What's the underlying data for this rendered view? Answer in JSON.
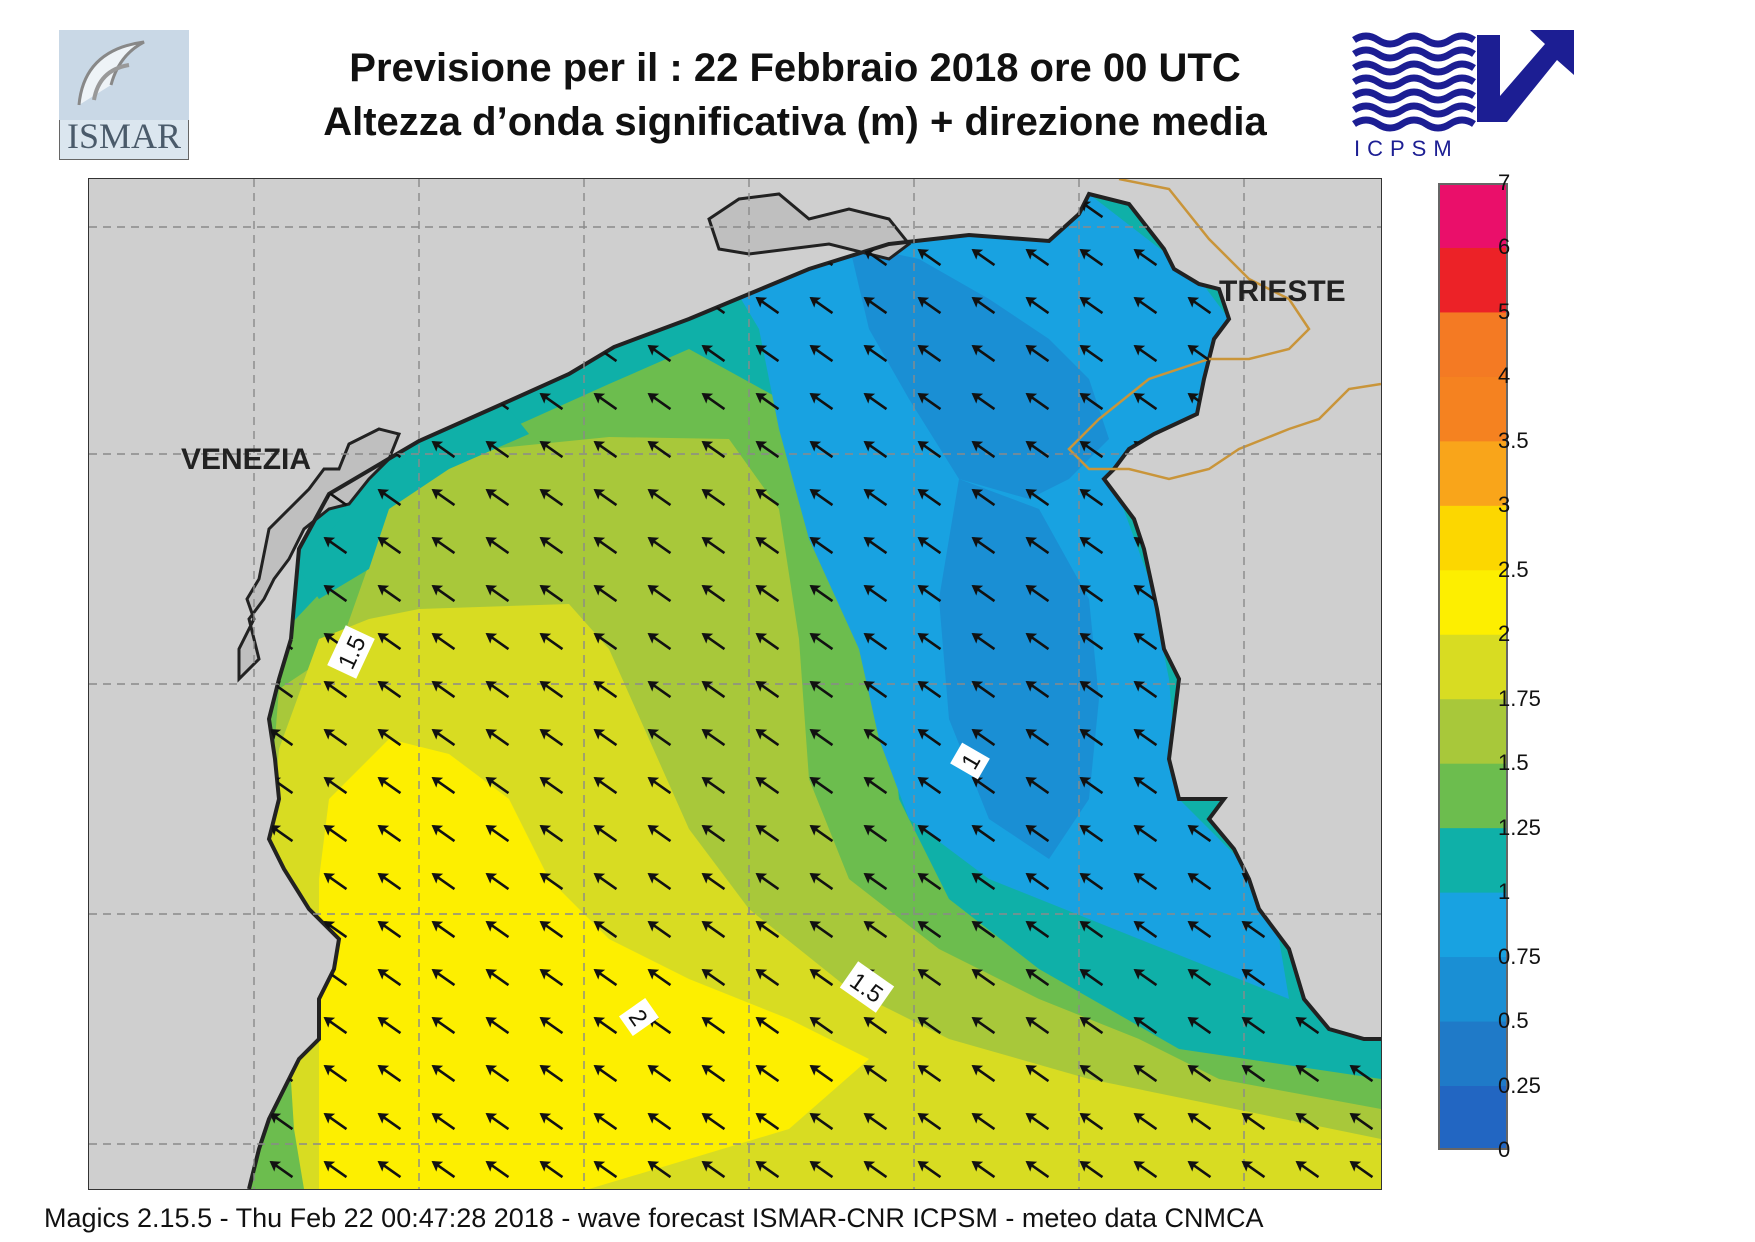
{
  "header": {
    "title_line1": "Previsione per il  :  22  Febbraio 2018   ore 00 UTC",
    "title_line2": "Altezza d’onda significativa (m) + direzione media"
  },
  "logos": {
    "left": "ISMAR",
    "right": "ICPSM"
  },
  "map": {
    "cities": [
      "VENEZIA",
      "TRIESTE"
    ],
    "contour_labels": [
      "1.5",
      "1",
      "1.5",
      "2"
    ],
    "arrow_direction": "south-west",
    "land_color": "#cfcfcf",
    "coast_color": "#222222"
  },
  "legend": {
    "ticks": [
      "7",
      "6",
      "5",
      "4",
      "3.5",
      "3",
      "2.5",
      "2",
      "1.75",
      "1.5",
      "1.25",
      "1",
      "0.75",
      "0.5",
      "0.25",
      "0"
    ],
    "colors": [
      "#2266c2",
      "#1f7ac8",
      "#1a8fd4",
      "#18a2e1",
      "#0fb0a8",
      "#6cbd4e",
      "#a8c83a",
      "#d8dc22",
      "#fdef00",
      "#fcd700",
      "#f9a51a",
      "#f58220",
      "#f47a23",
      "#ec2227",
      "#ea0f6a"
    ]
  },
  "footer": {
    "text": "Magics 2.15.5 - Thu Feb 22 00:47:28 2018 - wave forecast  ISMAR-CNR  ICPSM - meteo data   CNMCA"
  }
}
